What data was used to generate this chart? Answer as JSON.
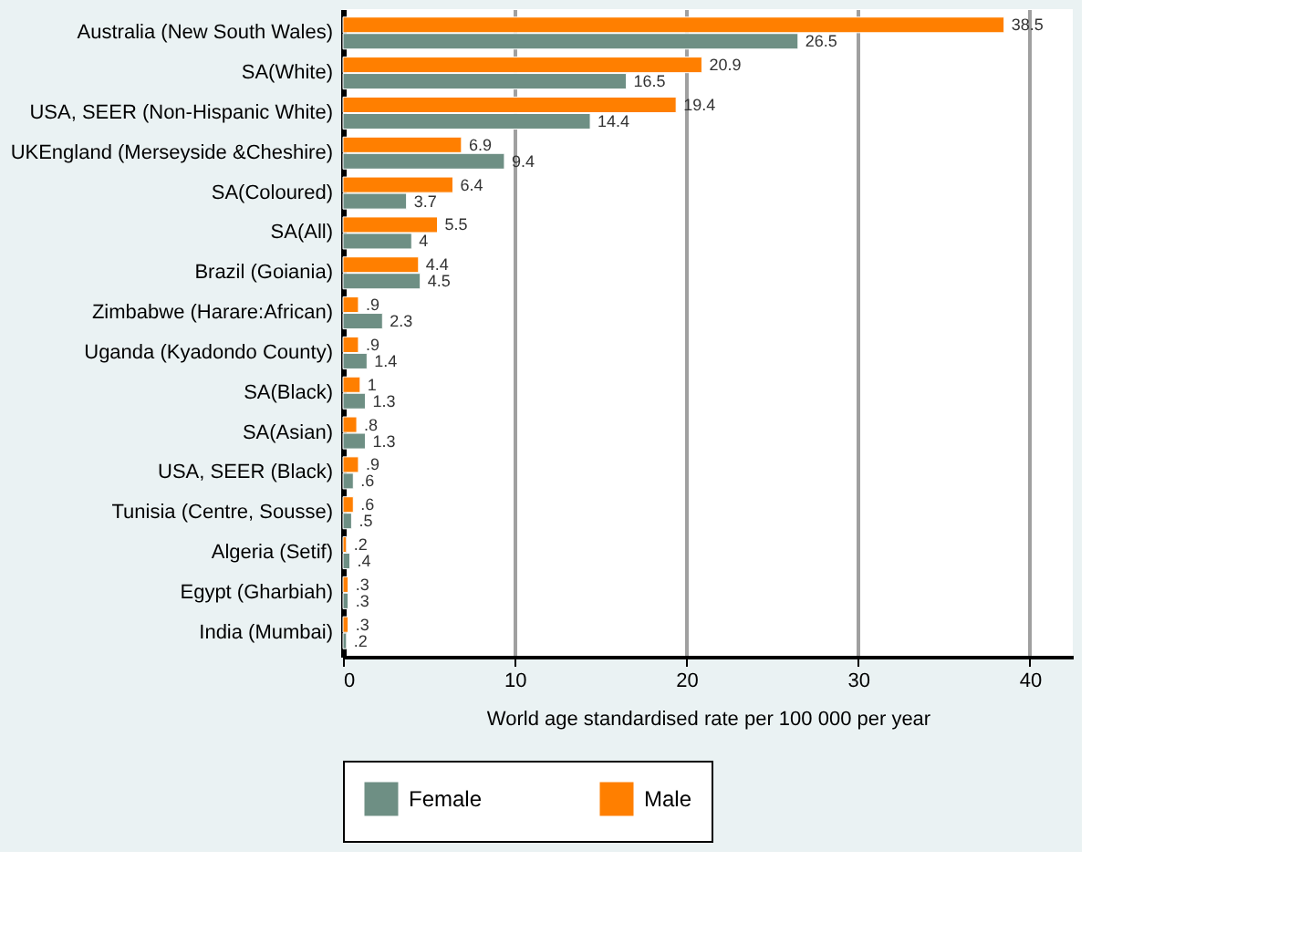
{
  "chart_data": {
    "type": "bar",
    "orientation": "horizontal",
    "xlabel": "World age standardised rate per 100 000 per year",
    "categories": [
      "Australia (New South Wales)",
      "SA(White)",
      "USA, SEER (Non-Hispanic White)",
      "UKEngland (Merseyside &Cheshire)",
      "SA(Coloured)",
      "SA(All)",
      "Brazil (Goiania)",
      "Zimbabwe (Harare:African)",
      "Uganda (Kyadondo County)",
      "SA(Black)",
      "SA(Asian)",
      "USA, SEER (Black)",
      "Tunisia (Centre, Sousse)",
      "Algeria (Setif)",
      "Egypt (Gharbiah)",
      "India (Mumbai)"
    ],
    "series": [
      {
        "name": "Female",
        "color": "#6e8f84",
        "values": [
          26.5,
          16.5,
          14.4,
          9.4,
          3.7,
          4,
          4.5,
          2.3,
          1.4,
          1.3,
          1.3,
          0.6,
          0.5,
          0.4,
          0.3,
          0.2
        ],
        "value_labels": [
          "26.5",
          "16.5",
          "14.4",
          "9.4",
          "3.7",
          "4",
          "4.5",
          "2.3",
          "1.4",
          "1.3",
          "1.3",
          ".6",
          ".5",
          ".4",
          ".3",
          ".2"
        ]
      },
      {
        "name": "Male",
        "color": "#ff7f00",
        "values": [
          38.5,
          20.9,
          19.4,
          6.9,
          6.4,
          5.5,
          4.4,
          0.9,
          0.9,
          1,
          0.8,
          0.9,
          0.6,
          0.2,
          0.3,
          0.3
        ],
        "value_labels": [
          "38.5",
          "20.9",
          "19.4",
          "6.9",
          "6.4",
          "5.5",
          "4.4",
          ".9",
          ".9",
          "1",
          ".8",
          ".9",
          ".6",
          ".2",
          ".3",
          ".3"
        ]
      }
    ],
    "xlim": [
      0,
      42.5
    ],
    "xticks": [
      0,
      10,
      20,
      30,
      40
    ],
    "grid": "x",
    "legend": "bottom"
  }
}
